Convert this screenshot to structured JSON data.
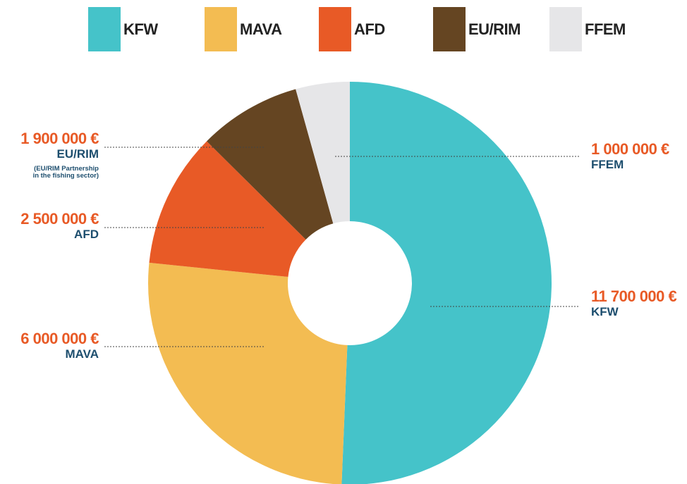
{
  "chart_data": {
    "type": "donut",
    "categories": [
      "KFW",
      "MAVA",
      "AFD",
      "EU/RIM",
      "FFEM"
    ],
    "values": [
      11700000,
      6000000,
      2500000,
      1900000,
      1000000
    ],
    "value_labels": [
      "11 700 000 €",
      "6 000 000 €",
      "2 500 000 €",
      "1 900 000 €",
      "1 000 000 €"
    ],
    "colors": [
      "#45c3c9",
      "#f3bc52",
      "#e85a26",
      "#654522",
      "#e6e6e8"
    ],
    "annotation": "(EU/RIM Partnership in the fishing sector)",
    "legend": "top"
  }
}
